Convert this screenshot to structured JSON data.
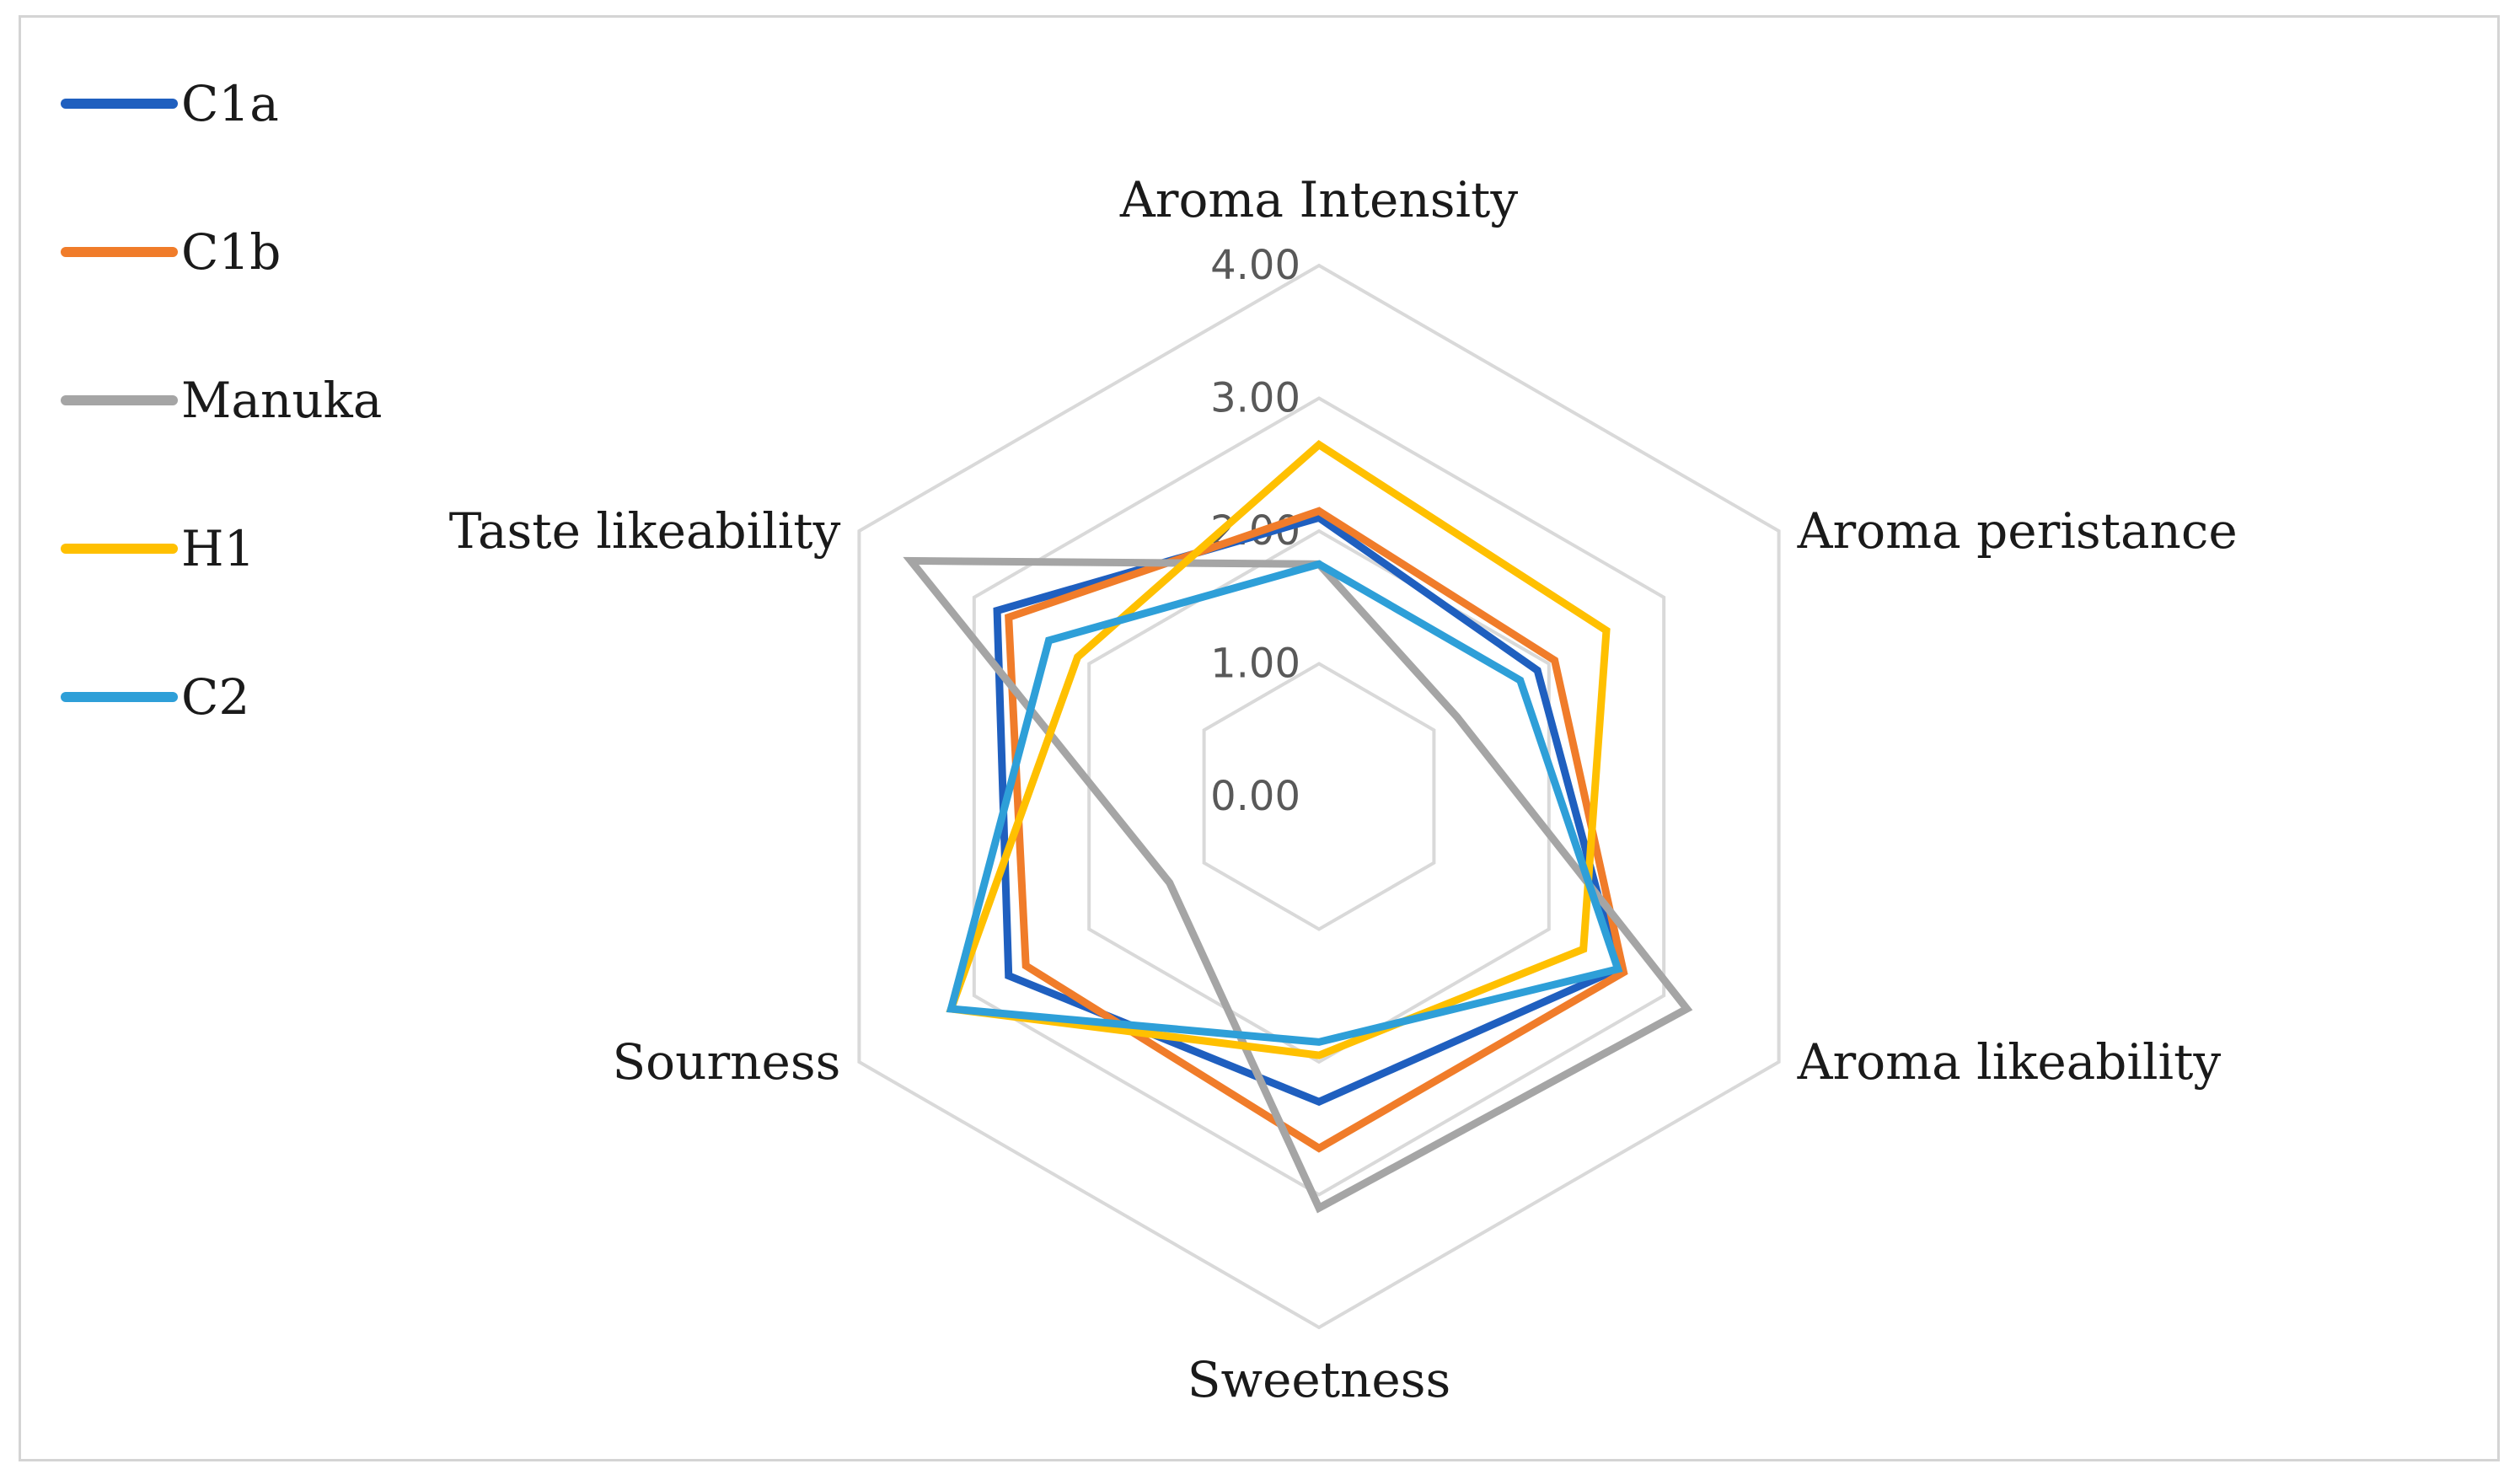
{
  "chart_data": {
    "type": "radar",
    "title": "",
    "axes": [
      "Aroma Intensity",
      "Aroma peristance",
      "Aroma likeability",
      "Sweetness",
      "Sourness",
      "Taste likeability"
    ],
    "range": [
      0,
      4
    ],
    "ticks": [
      "0.00",
      "1.00",
      "2.00",
      "3.00",
      "4.00"
    ],
    "tick_values": [
      0,
      1,
      2,
      3,
      4
    ],
    "legend_position": "left",
    "series": [
      {
        "name": "C1a",
        "color": "#1f5fbf",
        "values": [
          2.1,
          1.9,
          2.6,
          2.3,
          2.7,
          2.8
        ]
      },
      {
        "name": "C1b",
        "color": "#f07c2a",
        "values": [
          2.15,
          2.05,
          2.65,
          2.65,
          2.55,
          2.7
        ]
      },
      {
        "name": "Manuka",
        "color": "#a5a5a5",
        "values": [
          1.75,
          1.2,
          3.2,
          3.1,
          1.3,
          3.55
        ]
      },
      {
        "name": "H1",
        "color": "#ffc000",
        "values": [
          2.65,
          2.5,
          2.3,
          1.95,
          3.2,
          2.1
        ]
      },
      {
        "name": "C2",
        "color": "#2e9fd8",
        "values": [
          1.75,
          1.75,
          2.6,
          1.85,
          3.2,
          2.35
        ]
      }
    ]
  }
}
